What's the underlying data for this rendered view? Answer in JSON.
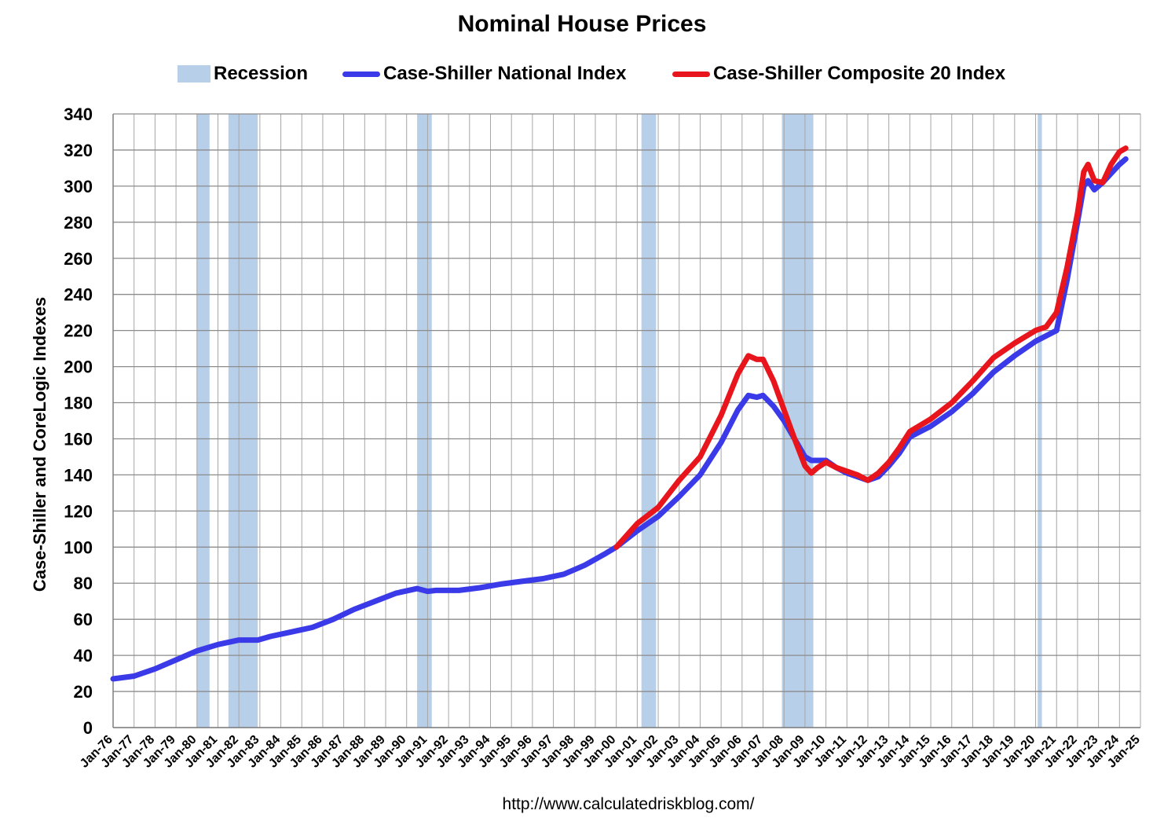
{
  "chart_data": {
    "type": "line",
    "title": "Nominal House Prices",
    "ylabel": "Case-Shiller and CoreLogic Indexes",
    "xlabel": "",
    "ylim": [
      0,
      340
    ],
    "yticks": [
      0,
      20,
      40,
      60,
      80,
      100,
      120,
      140,
      160,
      180,
      200,
      220,
      240,
      260,
      280,
      300,
      320,
      340
    ],
    "xlim": [
      1976,
      2025
    ],
    "xtick_labels": [
      "Jan-76",
      "Jan-77",
      "Jan-78",
      "Jan-79",
      "Jan-80",
      "Jan-81",
      "Jan-82",
      "Jan-83",
      "Jan-84",
      "Jan-85",
      "Jan-86",
      "Jan-87",
      "Jan-88",
      "Jan-89",
      "Jan-90",
      "Jan-91",
      "Jan-92",
      "Jan-93",
      "Jan-94",
      "Jan-95",
      "Jan-96",
      "Jan-97",
      "Jan-98",
      "Jan-99",
      "Jan-00",
      "Jan-01",
      "Jan-02",
      "Jan-03",
      "Jan-04",
      "Jan-05",
      "Jan-06",
      "Jan-07",
      "Jan-08",
      "Jan-09",
      "Jan-10",
      "Jan-11",
      "Jan-12",
      "Jan-13",
      "Jan-14",
      "Jan-15",
      "Jan-16",
      "Jan-17",
      "Jan-18",
      "Jan-19",
      "Jan-20",
      "Jan-21",
      "Jan-22",
      "Jan-23",
      "Jan-24",
      "Jan-25"
    ],
    "grid": true,
    "legend_position": "top",
    "recessions": {
      "name": "Recession",
      "color": "#b8cfea",
      "periods": [
        [
          1980.0,
          1980.6
        ],
        [
          1981.5,
          1982.9
        ],
        [
          1990.5,
          1991.2
        ],
        [
          2001.2,
          2001.9
        ],
        [
          2007.9,
          2009.4
        ],
        [
          2020.1,
          2020.3
        ]
      ]
    },
    "series": [
      {
        "name": "Case-Shiller National Index",
        "color": "#3a3ae8",
        "x": [
          1976.0,
          1977.0,
          1978.0,
          1979.0,
          1980.0,
          1981.0,
          1982.0,
          1982.9,
          1983.5,
          1984.5,
          1985.5,
          1986.5,
          1987.5,
          1988.5,
          1989.5,
          1990.5,
          1991.0,
          1991.4,
          1992.5,
          1993.5,
          1994.5,
          1995.5,
          1996.5,
          1997.5,
          1998.5,
          1999.5,
          2000.0,
          2001.0,
          2002.0,
          2003.0,
          2004.0,
          2005.0,
          2005.8,
          2006.3,
          2006.7,
          2007.0,
          2007.5,
          2008.0,
          2008.5,
          2009.0,
          2009.3,
          2010.0,
          2010.5,
          2011.0,
          2011.5,
          2012.0,
          2012.5,
          2013.0,
          2013.5,
          2014.0,
          2015.0,
          2016.0,
          2017.0,
          2018.0,
          2019.0,
          2020.0,
          2021.0,
          2021.5,
          2022.0,
          2022.3,
          2022.5,
          2022.8,
          2023.2,
          2023.6,
          2024.0,
          2024.3
        ],
        "values": [
          27,
          28.5,
          32.5,
          37.5,
          42.5,
          46,
          48.5,
          48.5,
          50.5,
          53,
          55.5,
          60,
          65.5,
          70,
          74.5,
          77,
          75.5,
          76,
          76,
          77.5,
          79.5,
          81,
          82.5,
          85,
          90,
          96.5,
          100,
          109,
          117,
          128,
          140,
          158,
          176,
          184,
          183,
          184,
          178,
          170,
          160,
          150,
          148,
          148,
          144,
          141,
          139,
          137,
          139,
          145,
          152,
          161,
          167,
          175,
          185,
          197,
          206,
          214,
          220,
          248,
          280,
          300,
          303,
          298,
          302,
          307,
          312,
          315
        ]
      },
      {
        "name": "Case-Shiller Composite 20 Index",
        "color": "#e8161c",
        "x": [
          2000.0,
          2001.0,
          2002.0,
          2003.0,
          2004.0,
          2005.0,
          2005.8,
          2006.3,
          2006.7,
          2007.0,
          2007.5,
          2008.0,
          2008.5,
          2009.0,
          2009.3,
          2009.6,
          2010.0,
          2010.5,
          2011.0,
          2011.5,
          2012.0,
          2012.5,
          2013.0,
          2013.5,
          2014.0,
          2015.0,
          2016.0,
          2017.0,
          2018.0,
          2019.0,
          2020.0,
          2020.5,
          2021.0,
          2021.5,
          2022.0,
          2022.3,
          2022.5,
          2022.8,
          2023.2,
          2023.6,
          2024.0,
          2024.3
        ],
        "values": [
          100,
          113,
          122,
          137,
          150,
          173,
          196,
          206,
          204,
          204,
          192,
          176,
          160,
          145,
          141,
          144,
          147,
          144,
          142,
          140,
          137,
          141,
          147,
          155,
          164,
          171,
          180,
          192,
          205,
          213,
          220,
          222,
          230,
          255,
          285,
          308,
          312,
          303,
          302,
          312,
          319,
          321
        ]
      }
    ]
  },
  "legend": {
    "recession_label": "Recession",
    "national_label": "Case-Shiller National Index",
    "composite_label": "Case-Shiller Composite 20 Index"
  },
  "source": "http://www.calculatedriskblog.com/"
}
